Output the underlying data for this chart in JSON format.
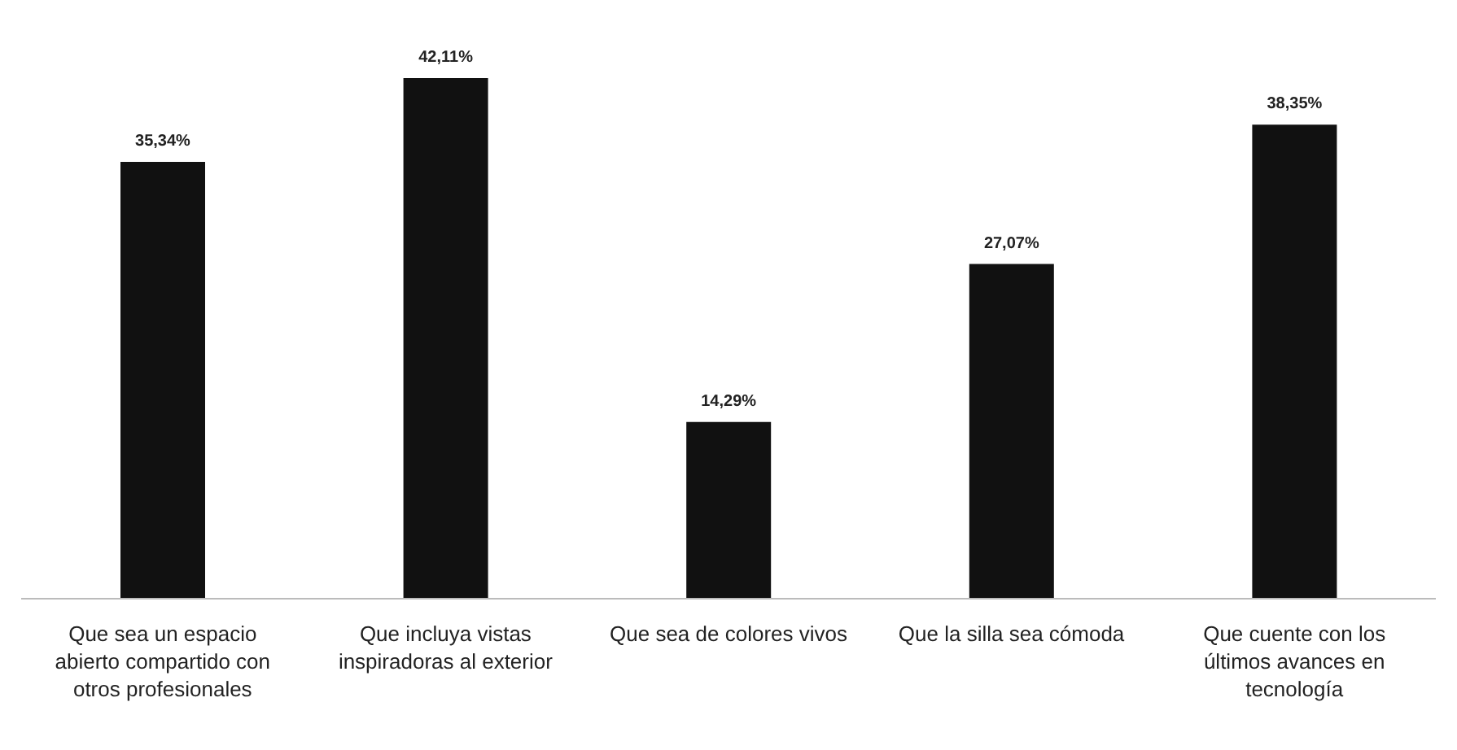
{
  "chart_data": {
    "type": "bar",
    "categories": [
      "Que sea un espacio abierto compartido con otros profesionales",
      "Que incluya vistas inspiradoras al exterior",
      "Que sea de colores vivos",
      "Que la silla sea cómoda",
      "Que cuente con los últimos avances en tecnología"
    ],
    "values": [
      35.34,
      42.11,
      14.29,
      27.07,
      38.35
    ],
    "value_labels": [
      "35,34%",
      "42,11%",
      "14,29%",
      "27,07%",
      "38,35%"
    ],
    "color": "#111111",
    "grid": false,
    "legend": false
  }
}
